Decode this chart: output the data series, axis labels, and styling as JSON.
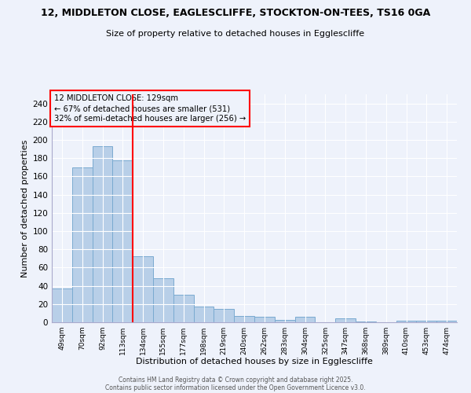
{
  "title_line1": "12, MIDDLETON CLOSE, EAGLESCLIFFE, STOCKTON-ON-TEES, TS16 0GA",
  "title_line2": "Size of property relative to detached houses in Egglescliffe",
  "xlabel": "Distribution of detached houses by size in Egglescliffe",
  "ylabel": "Number of detached properties",
  "bar_labels": [
    "49sqm",
    "70sqm",
    "92sqm",
    "113sqm",
    "134sqm",
    "155sqm",
    "177sqm",
    "198sqm",
    "219sqm",
    "240sqm",
    "262sqm",
    "283sqm",
    "304sqm",
    "325sqm",
    "347sqm",
    "368sqm",
    "389sqm",
    "410sqm",
    "453sqm",
    "474sqm"
  ],
  "bar_values": [
    37,
    170,
    193,
    178,
    72,
    48,
    30,
    17,
    15,
    7,
    6,
    3,
    6,
    0,
    4,
    1,
    0,
    2,
    2,
    2
  ],
  "bar_color": "#b8cfe8",
  "bar_edge_color": "#7aaad0",
  "property_label": "12 MIDDLETON CLOSE: 129sqm",
  "annotation_line1": "← 67% of detached houses are smaller (531)",
  "annotation_line2": "32% of semi-detached houses are larger (256) →",
  "vline_position": 3.5,
  "vline_color": "red",
  "box_color": "red",
  "ylim": [
    0,
    250
  ],
  "yticks": [
    0,
    20,
    40,
    60,
    80,
    100,
    120,
    140,
    160,
    180,
    200,
    220,
    240
  ],
  "footer_line1": "Contains HM Land Registry data © Crown copyright and database right 2025.",
  "footer_line2": "Contains public sector information licensed under the Open Government Licence v3.0.",
  "background_color": "#eef2fb"
}
